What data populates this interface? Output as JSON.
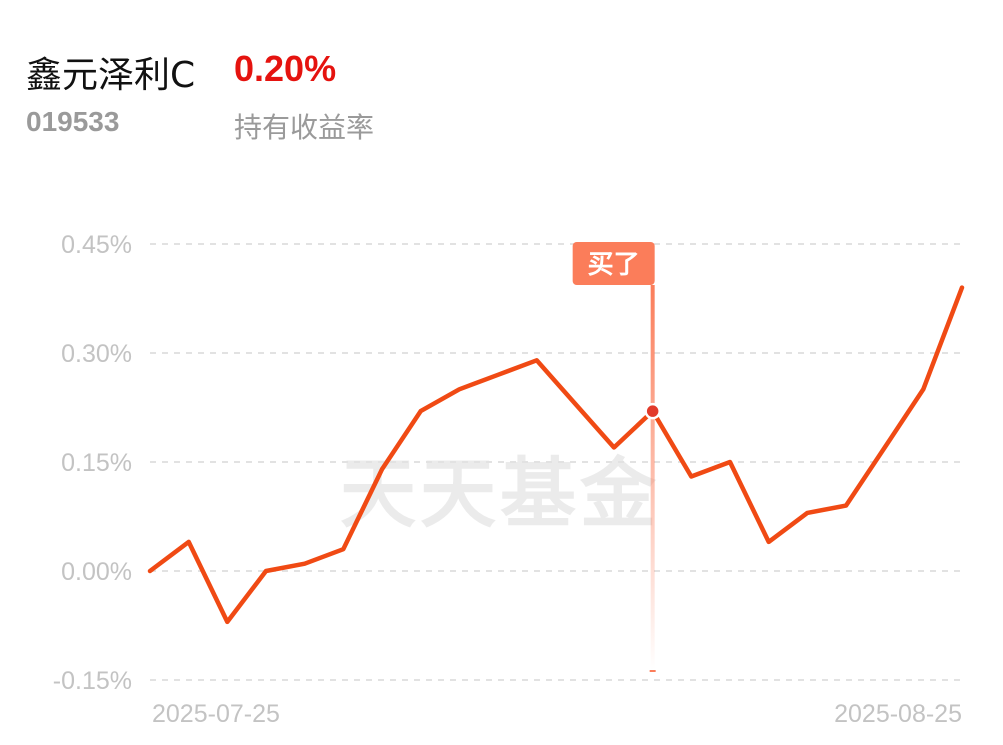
{
  "header": {
    "fund_name": "鑫元泽利C",
    "return_value": "0.20%",
    "fund_code": "019533",
    "return_label": "持有收益率"
  },
  "watermark": "天天基金",
  "colors": {
    "line": "#f04a14",
    "return": "#e5130f",
    "marker": "#e23a2a",
    "buy_flag": "#fb7d5a"
  },
  "chart_data": {
    "type": "line",
    "y_unit": "%",
    "ylim": [
      -0.15,
      0.45
    ],
    "yticks": [
      0.45,
      0.3,
      0.15,
      0.0,
      -0.15
    ],
    "ytick_labels": [
      "0.45%",
      "0.30%",
      "0.15%",
      "0.00%",
      "-0.15%"
    ],
    "xtick_labels": [
      "2025-07-25",
      "2025-08-25"
    ],
    "grid": true,
    "series": [
      {
        "values": [
          0.0,
          0.04,
          -0.07,
          0.0,
          0.01,
          0.03,
          0.14,
          0.22,
          0.25,
          0.27,
          0.29,
          0.23,
          0.17,
          0.22,
          0.13,
          0.15,
          0.04,
          0.08,
          0.09,
          0.17,
          0.25,
          0.39
        ]
      }
    ],
    "annotation": {
      "label": "买了",
      "index": 13
    }
  }
}
